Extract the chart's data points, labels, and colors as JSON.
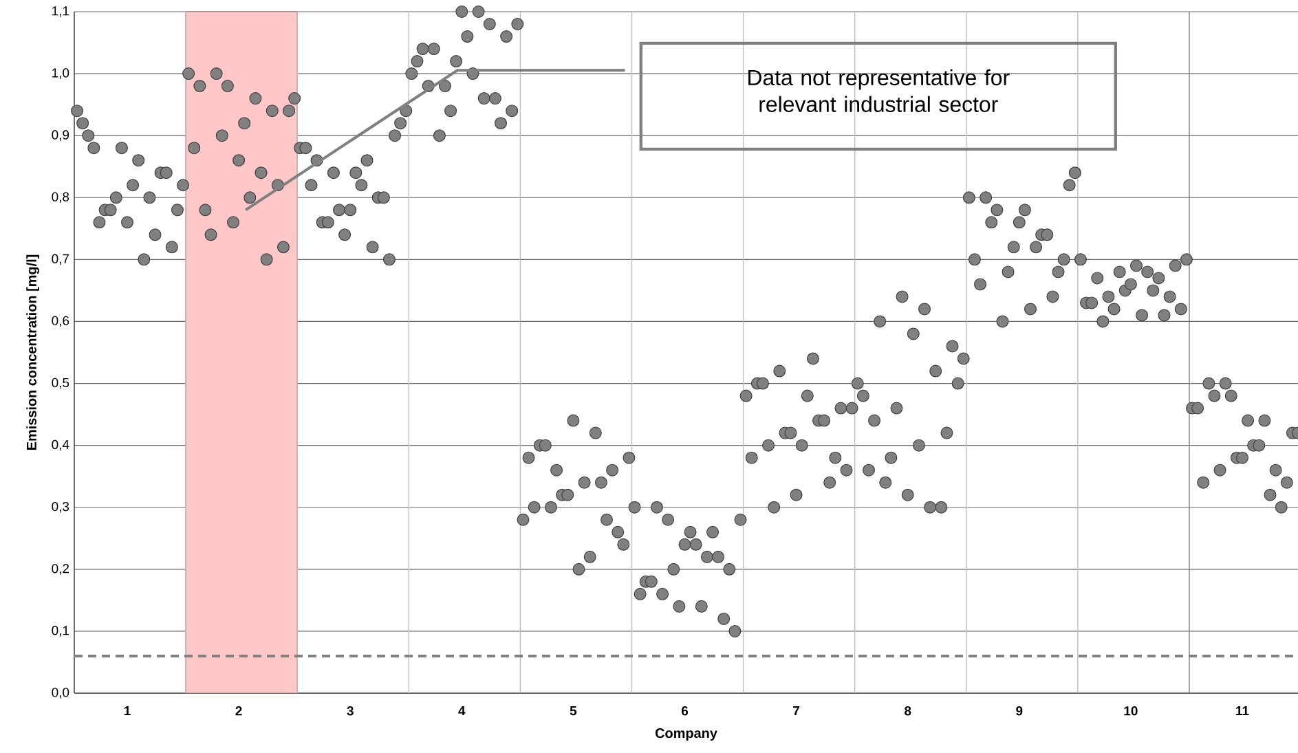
{
  "chart_data": {
    "type": "scatter",
    "xlabel": "Company",
    "ylabel": "Emission concentration [mg/l]",
    "categories": [
      null,
      null,
      null,
      null,
      null,
      null,
      null,
      null,
      null,
      "1",
      null,
      null,
      null,
      null,
      null,
      null,
      null,
      null,
      null,
      null,
      null,
      null,
      null,
      null,
      null,
      null,
      null,
      null,
      null,
      "2",
      null,
      null,
      null,
      null,
      null,
      null,
      null,
      null,
      null,
      null,
      null,
      null,
      null,
      null,
      null,
      null,
      null,
      null,
      null,
      "3",
      null,
      null,
      null,
      null,
      null,
      null,
      null,
      null,
      null,
      null,
      null,
      null,
      null,
      null,
      null,
      null,
      null,
      null,
      null,
      "4",
      null,
      null,
      null,
      null,
      null,
      null,
      null,
      null,
      null,
      null,
      null,
      null,
      null,
      null,
      null,
      null,
      null,
      null,
      null,
      "5",
      null,
      null,
      null,
      null,
      null,
      null,
      null,
      null,
      null,
      null,
      null,
      null,
      null,
      null,
      null,
      null,
      null,
      null,
      null,
      "6",
      null,
      null,
      null,
      null,
      null,
      null,
      null,
      null,
      null,
      null,
      null,
      null,
      null,
      null,
      null,
      null,
      null,
      null,
      null,
      "7",
      null,
      null,
      null,
      null,
      null,
      null,
      null,
      null,
      null,
      null,
      null,
      null,
      null,
      null,
      null,
      null,
      null,
      null,
      null,
      "8",
      null,
      null,
      null,
      null,
      null,
      null,
      null,
      null,
      null,
      null,
      null,
      null,
      null,
      null,
      null,
      null,
      null,
      null,
      null,
      "9",
      null,
      null,
      null,
      null,
      null,
      null,
      null,
      null,
      null,
      null,
      null,
      null,
      null,
      null,
      null,
      null,
      null,
      null,
      null,
      "10",
      null,
      null,
      null,
      null,
      null,
      null,
      null,
      null,
      null,
      null,
      null,
      null,
      null,
      null,
      null,
      null,
      null,
      null,
      null,
      "11",
      null,
      null,
      null,
      null,
      null,
      null,
      null,
      null,
      null,
      null
    ],
    "values": [
      0.94,
      0.92,
      0.9,
      0.88,
      0.76,
      0.78,
      0.78,
      0.8,
      0.88,
      0.76,
      0.82,
      0.86,
      0.7,
      0.8,
      0.74,
      0.84,
      0.84,
      0.72,
      0.78,
      0.82,
      1.0,
      0.88,
      0.98,
      0.78,
      0.74,
      1.0,
      0.9,
      0.98,
      0.76,
      0.86,
      0.92,
      0.8,
      0.96,
      0.84,
      0.7,
      0.94,
      0.82,
      0.72,
      0.94,
      0.96,
      0.88,
      0.88,
      0.82,
      0.86,
      0.76,
      0.76,
      0.84,
      0.78,
      0.74,
      0.78,
      0.84,
      0.82,
      0.86,
      0.72,
      0.8,
      0.8,
      0.7,
      0.9,
      0.92,
      0.94,
      1.0,
      1.02,
      1.04,
      0.98,
      1.04,
      0.9,
      0.98,
      0.94,
      1.02,
      1.1,
      1.06,
      1.0,
      1.1,
      0.96,
      1.08,
      0.96,
      0.92,
      1.06,
      0.94,
      1.08,
      0.28,
      0.38,
      0.3,
      0.4,
      0.4,
      0.3,
      0.36,
      0.32,
      0.32,
      0.44,
      0.2,
      0.34,
      0.22,
      0.42,
      0.34,
      0.28,
      0.36,
      0.26,
      0.24,
      0.38,
      0.3,
      0.16,
      0.18,
      0.18,
      0.3,
      0.16,
      0.28,
      0.2,
      0.14,
      0.24,
      0.26,
      0.24,
      0.14,
      0.22,
      0.26,
      0.22,
      0.12,
      0.2,
      0.1,
      0.28,
      0.48,
      0.38,
      0.5,
      0.5,
      0.4,
      0.3,
      0.52,
      0.42,
      0.42,
      0.32,
      0.4,
      0.48,
      0.54,
      0.44,
      0.44,
      0.34,
      0.38,
      0.46,
      0.36,
      0.46,
      0.5,
      0.48,
      0.36,
      0.44,
      0.6,
      0.34,
      0.38,
      0.46,
      0.64,
      0.32,
      0.58,
      0.4,
      0.62,
      0.3,
      0.52,
      0.3,
      0.42,
      0.56,
      0.5,
      0.54,
      0.8,
      0.7,
      0.66,
      0.8,
      0.76,
      0.78,
      0.6,
      0.68,
      0.72,
      0.76,
      0.78,
      0.62,
      0.72,
      0.74,
      0.74,
      0.64,
      0.68,
      0.7,
      0.82,
      0.84,
      0.7,
      0.63,
      0.63,
      0.67,
      0.6,
      0.64,
      0.62,
      0.68,
      0.65,
      0.66,
      0.69,
      0.61,
      0.68,
      0.65,
      0.67,
      0.61,
      0.64,
      0.69,
      0.62,
      0.7,
      0.46,
      0.46,
      0.34,
      0.5,
      0.48,
      0.36,
      0.5,
      0.48,
      0.38,
      0.38,
      0.44,
      0.4,
      0.4,
      0.44,
      0.32,
      0.36,
      0.3,
      0.34,
      0.42,
      0.42
    ],
    "color": "#808080",
    "marker": "circle",
    "grid": "y",
    "ylim": [
      0,
      1.1
    ],
    "yticks": [
      {
        "value": 0,
        "label": "0,0"
      },
      {
        "value": 0.1,
        "label": "0,1"
      },
      {
        "value": 0.2,
        "label": "0,2"
      },
      {
        "value": 0.3,
        "label": "0,3"
      },
      {
        "value": 0.4,
        "label": "0,4"
      },
      {
        "value": 0.5,
        "label": "0,5"
      },
      {
        "value": 0.6,
        "label": "0,6"
      },
      {
        "value": 0.7,
        "label": "0,7"
      },
      {
        "value": 0.8,
        "label": "0,8"
      },
      {
        "value": 0.9,
        "label": "0,9"
      },
      {
        "value": 1.0,
        "label": "1,0"
      },
      {
        "value": 1.1,
        "label": "1,1"
      }
    ],
    "ref_lines": [
      {
        "axis": "y",
        "value": 0.06,
        "color": "#808080",
        "line_style": "dashed"
      }
    ],
    "annotations": [
      "Data not representative for relevant industrial sector"
    ]
  }
}
